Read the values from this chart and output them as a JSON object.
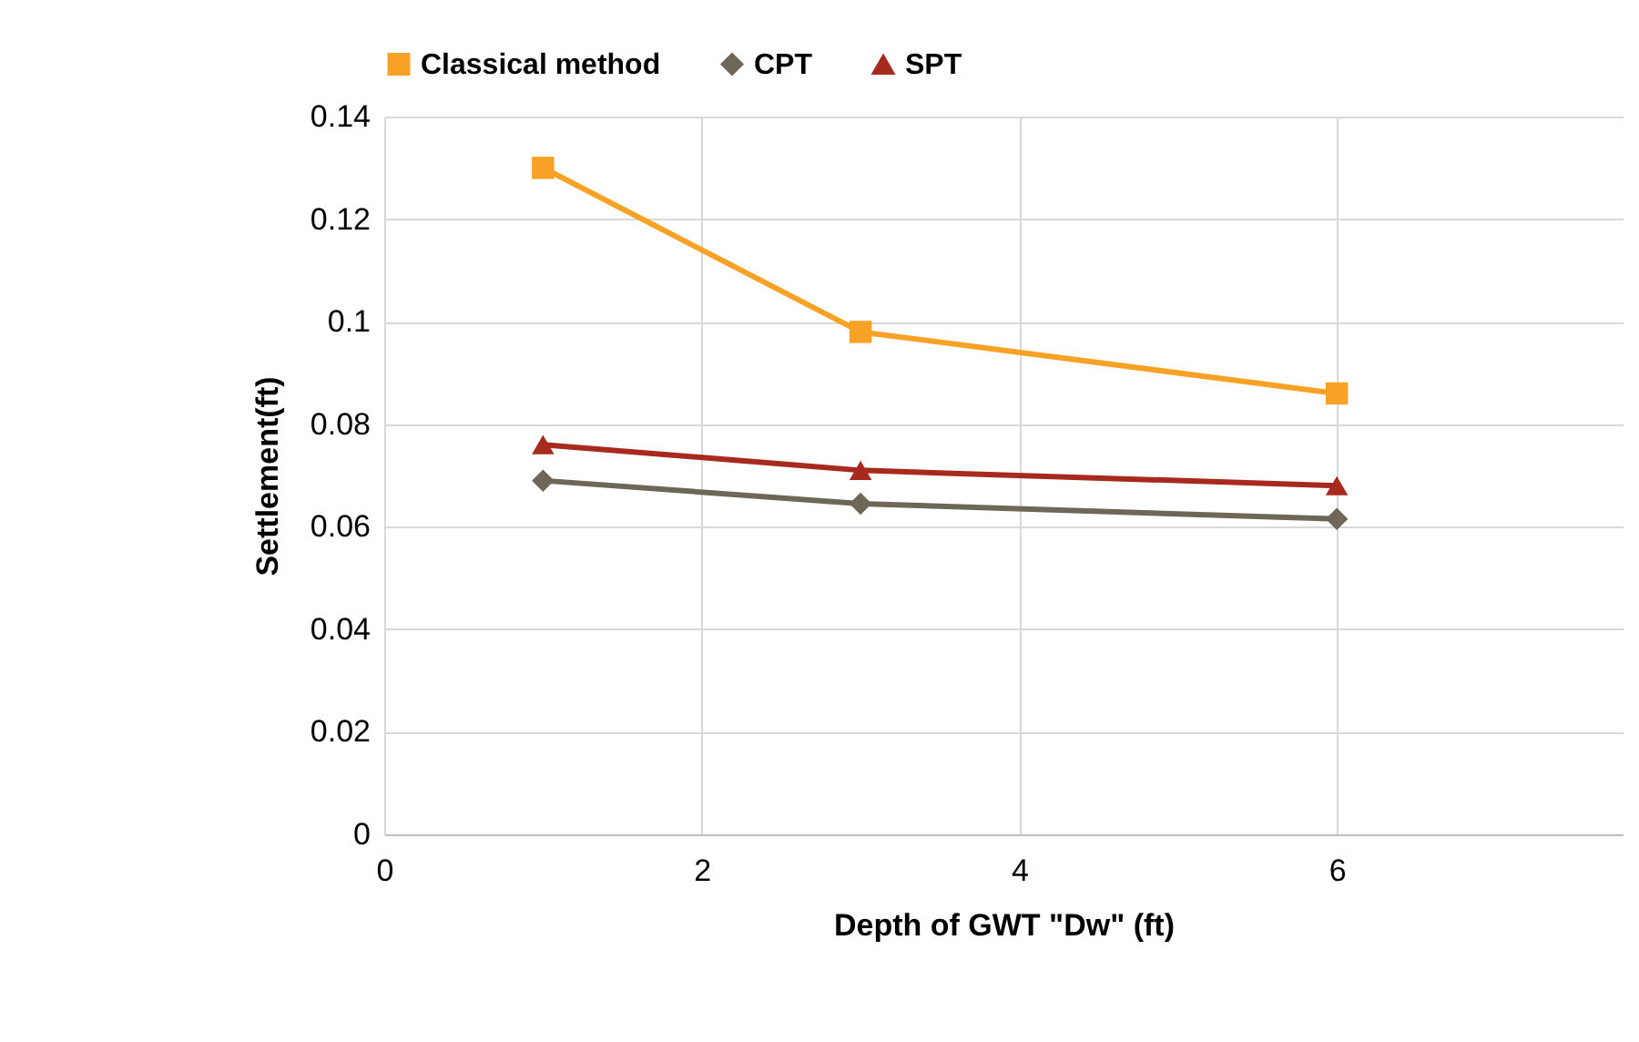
{
  "chart_data": {
    "type": "line",
    "xlabel": "Depth of GWT \"Dw\" (ft)",
    "ylabel": "Settlement(ft)",
    "x": [
      1,
      3,
      6
    ],
    "series": [
      {
        "name": "Classical method",
        "color": "#f7a226",
        "marker": "square",
        "values": [
          0.13,
          0.098,
          0.086
        ]
      },
      {
        "name": "CPT",
        "color": "#6e6757",
        "marker": "diamond",
        "values": [
          0.069,
          0.0645,
          0.0615
        ]
      },
      {
        "name": "SPT",
        "color": "#a8291d",
        "marker": "triangle",
        "values": [
          0.076,
          0.071,
          0.068
        ]
      }
    ],
    "xlim": [
      0,
      7.8
    ],
    "xticks": [
      0,
      2,
      4,
      6
    ],
    "ylim": [
      0,
      0.14
    ],
    "yticks": [
      0,
      0.02,
      0.04,
      0.06,
      0.08,
      0.1,
      0.12,
      0.14
    ],
    "grid": true,
    "legend": "top"
  }
}
